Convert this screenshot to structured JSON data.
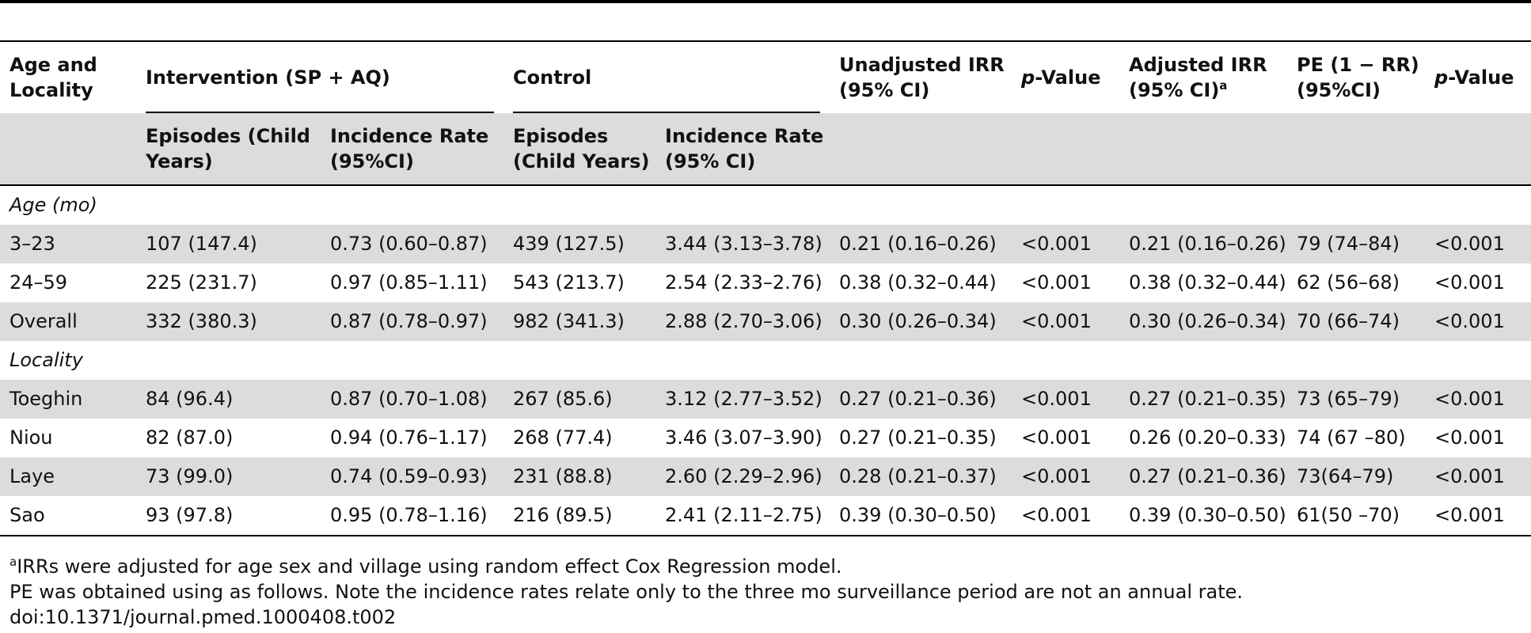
{
  "header": {
    "age_locality": [
      "Age and",
      "Locality"
    ],
    "intervention": "Intervention (SP + AQ)",
    "control": "Control",
    "unadjusted_irr": [
      "Unadjusted IRR",
      "(95% CI)"
    ],
    "p_value_italic": "p",
    "p_value_rest": "-Value",
    "adjusted_irr": [
      "Adjusted IRR",
      "(95% CI)"
    ],
    "adjusted_sup": "a",
    "pe": [
      "PE (1 − RR)",
      "(95%CI)"
    ],
    "sub": {
      "int_episodes": [
        "Episodes (Child",
        "Years)"
      ],
      "int_incidence": [
        "Incidence Rate",
        "(95%CI)"
      ],
      "ctl_episodes": [
        "Episodes",
        "(Child Years)"
      ],
      "ctl_incidence": [
        "Incidence Rate",
        "(95% CI)"
      ]
    }
  },
  "sections": [
    {
      "title": "Age (mo)",
      "rows": [
        [
          "3–23",
          "107 (147.4)",
          "0.73 (0.60–0.87)",
          "439 (127.5)",
          "3.44 (3.13–3.78)",
          "0.21 (0.16–0.26)",
          "<0.001",
          "0.21 (0.16–0.26)",
          "79 (74–84)",
          "<0.001"
        ],
        [
          "24–59",
          "225 (231.7)",
          "0.97 (0.85–1.11)",
          "543 (213.7)",
          "2.54 (2.33–2.76)",
          "0.38 (0.32–0.44)",
          "<0.001",
          "0.38 (0.32–0.44)",
          "62 (56–68)",
          "<0.001"
        ],
        [
          "Overall",
          "332 (380.3)",
          "0.87 (0.78–0.97)",
          "982 (341.3)",
          "2.88 (2.70–3.06)",
          "0.30 (0.26–0.34)",
          "<0.001",
          "0.30 (0.26–0.34)",
          "70 (66–74)",
          "<0.001"
        ]
      ]
    },
    {
      "title": "Locality",
      "rows": [
        [
          "Toeghin",
          "84 (96.4)",
          "0.87 (0.70–1.08)",
          "267 (85.6)",
          "3.12 (2.77–3.52)",
          "0.27 (0.21–0.36)",
          "<0.001",
          "0.27 (0.21–0.35)",
          "73 (65–79)",
          "<0.001"
        ],
        [
          "Niou",
          "82 (87.0)",
          "0.94 (0.76–1.17)",
          "268 (77.4)",
          "3.46 (3.07–3.90)",
          "0.27 (0.21–0.35)",
          "<0.001",
          "0.26 (0.20–0.33)",
          "74 (67 –80)",
          "<0.001"
        ],
        [
          "Laye",
          "73 (99.0)",
          "0.74 (0.59–0.93)",
          "231 (88.8)",
          "2.60 (2.29–2.96)",
          "0.28 (0.21–0.37)",
          "<0.001",
          "0.27 (0.21–0.36)",
          "73(64–79)",
          "<0.001"
        ],
        [
          "Sao",
          "93 (97.8)",
          "0.95 (0.78–1.16)",
          "216 (89.5)",
          "2.41 (2.11–2.75)",
          "0.39 (0.30–0.50)",
          "<0.001",
          "0.39 (0.30–0.50)",
          "61(50 –70)",
          "<0.001"
        ]
      ]
    }
  ],
  "footnotes": {
    "a_sup": "a",
    "a_text": "IRRs were adjusted for age sex and village using random effect Cox Regression model.",
    "pe_text": "PE was obtained using as follows. Note the incidence rates relate only to the three mo surveillance period are not an annual rate.",
    "doi": "doi:10.1371/journal.pmed.1000408.t002"
  }
}
